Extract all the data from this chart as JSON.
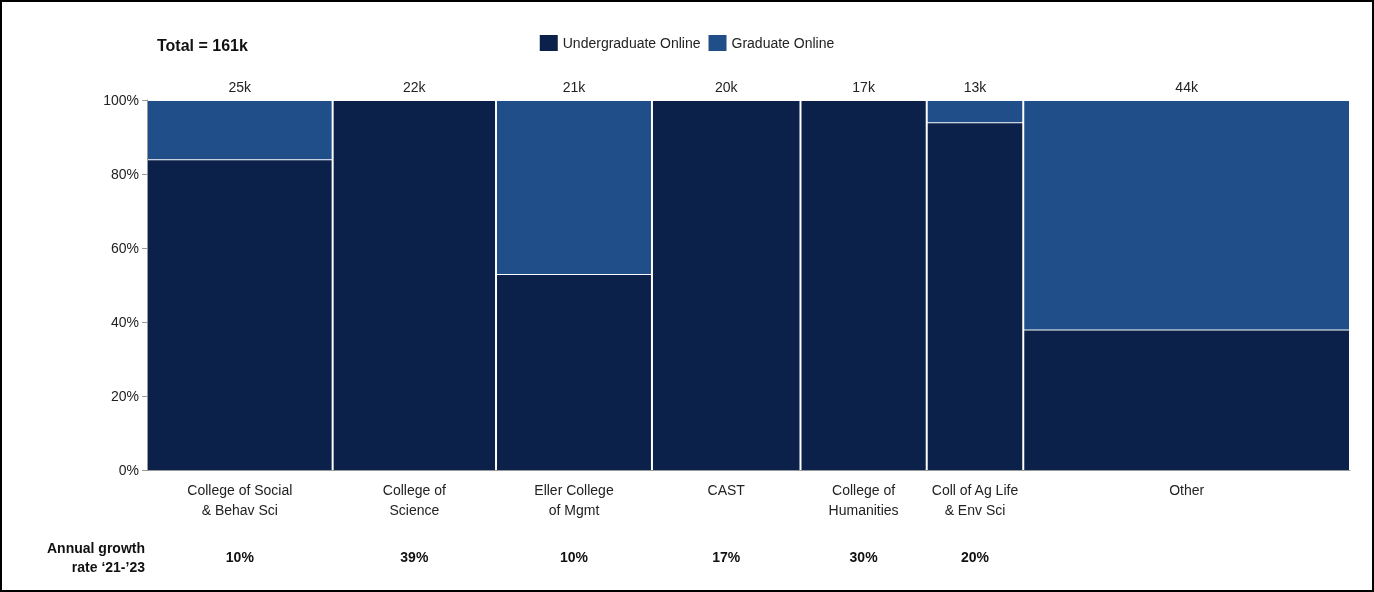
{
  "chart_data": {
    "type": "bar",
    "stacked": true,
    "categories": [
      "College of Social & Behav Sci",
      "College of Science",
      "Eller College of Mgmt",
      "CAST",
      "College of Humanities",
      "Coll of Ag Life & Env Sci",
      "Other"
    ],
    "series": [
      {
        "name": "Undergraduate Online",
        "color": "#0c214a",
        "values": [
          84,
          100,
          53,
          100,
          100,
          94,
          38
        ]
      },
      {
        "name": "Graduate Online",
        "color": "#1f4e89",
        "values": [
          16,
          0,
          47,
          0,
          0,
          6,
          62
        ]
      }
    ],
    "ylim": [
      0,
      100
    ],
    "yticks": [
      {
        "value": 0,
        "label": "0%"
      },
      {
        "value": 20,
        "label": "20%"
      },
      {
        "value": 40,
        "label": "40%"
      },
      {
        "value": 60,
        "label": "60%"
      },
      {
        "value": 80,
        "label": "80%"
      },
      {
        "value": 100,
        "label": "100%"
      }
    ],
    "grid": false,
    "legend": "top",
    "annotations": [
      "Total = 161k",
      "Annual growth rate ‘21-’23",
      "10%",
      "39%",
      "10%",
      "17%",
      "30%",
      "20%",
      {
        "text": "25k",
        "y": 100
      },
      {
        "text": "22k",
        "y": 100
      },
      {
        "text": "21k",
        "y": 100
      },
      {
        "text": "20k",
        "y": 100
      },
      {
        "text": "17k",
        "y": 100
      },
      {
        "text": "13k",
        "y": 100
      },
      {
        "text": "44k",
        "y": 100
      }
    ]
  }
}
